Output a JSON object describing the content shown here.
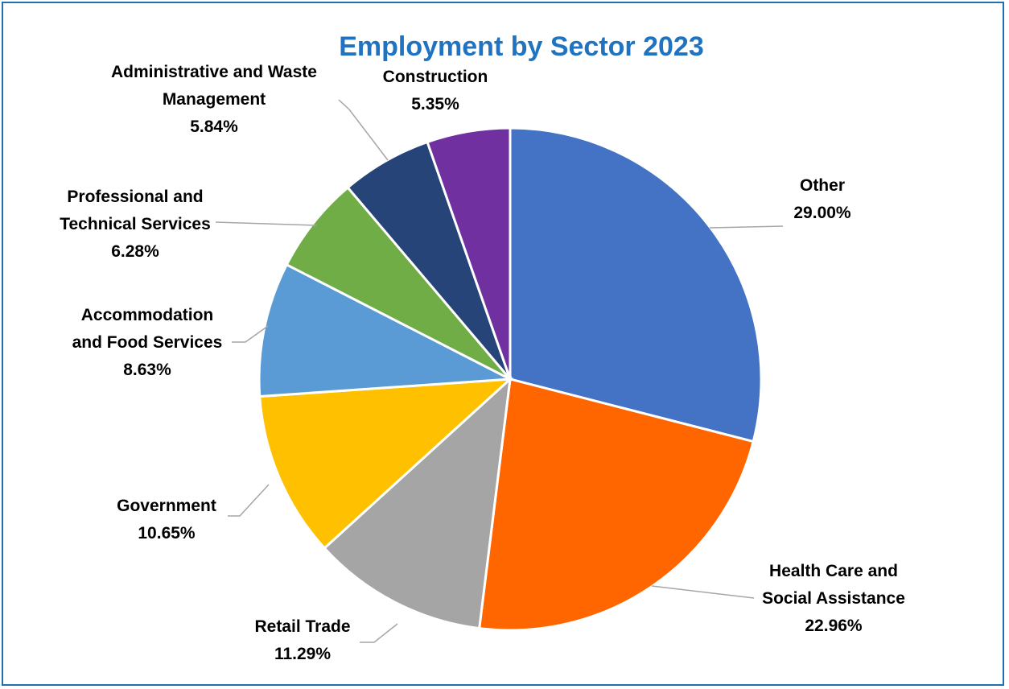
{
  "chart_data": {
    "type": "pie",
    "title": "Employment by Sector 2023",
    "slices": [
      {
        "label_lines": [
          "Other"
        ],
        "value_label": "29.00%",
        "value": 29.0,
        "color": "#4472c4"
      },
      {
        "label_lines": [
          "Health Care and",
          "Social Assistance"
        ],
        "value_label": "22.96%",
        "value": 22.96,
        "color": "#ff6600"
      },
      {
        "label_lines": [
          "Retail Trade"
        ],
        "value_label": "11.29%",
        "value": 11.29,
        "color": "#a5a5a5"
      },
      {
        "label_lines": [
          "Government"
        ],
        "value_label": "10.65%",
        "value": 10.65,
        "color": "#ffc000"
      },
      {
        "label_lines": [
          "Accommodation",
          "and Food Services"
        ],
        "value_label": "8.63%",
        "value": 8.63,
        "color": "#5b9bd5"
      },
      {
        "label_lines": [
          "Professional and",
          "Technical Services"
        ],
        "value_label": "6.28%",
        "value": 6.28,
        "color": "#70ad47"
      },
      {
        "label_lines": [
          "Administrative and Waste",
          "Management"
        ],
        "value_label": "5.84%",
        "value": 5.84,
        "color": "#264478"
      },
      {
        "label_lines": [
          "Construction"
        ],
        "value_label": "5.35%",
        "value": 5.35,
        "color": "#7030a0"
      }
    ],
    "start_angle_deg": 0,
    "direction": "clockwise",
    "legend": "none",
    "labels": "outside with leader lines"
  },
  "colors": {
    "title": "#1f73c0",
    "border": "#1f6fb5",
    "leader_line": "#a6a6a6"
  }
}
